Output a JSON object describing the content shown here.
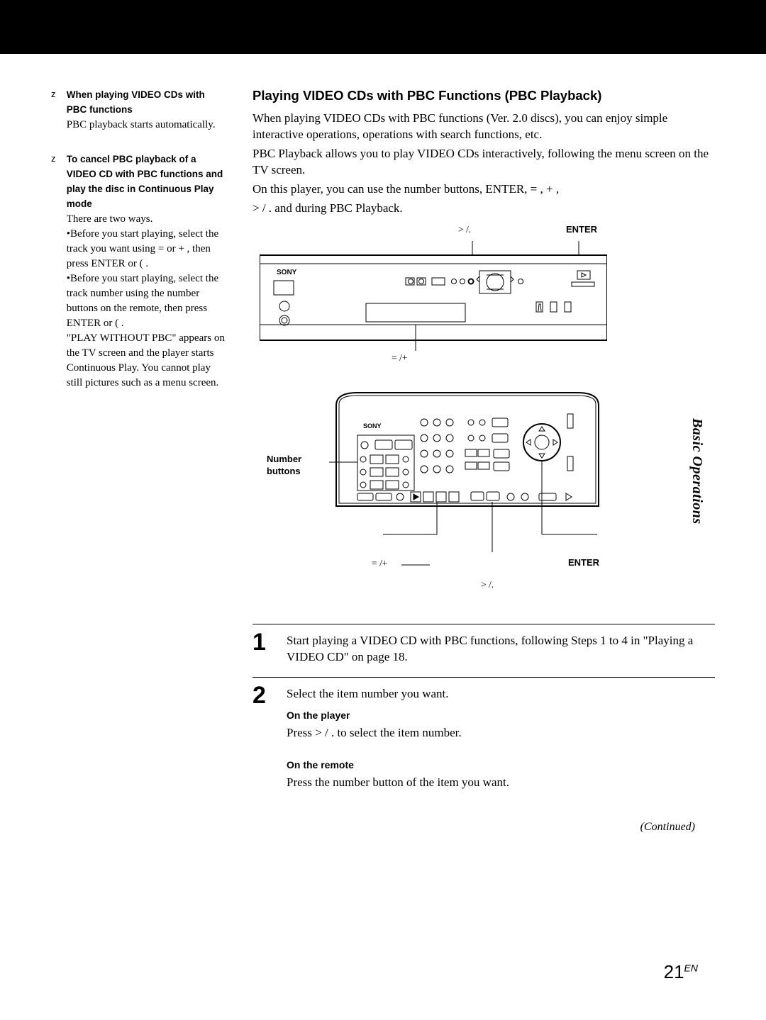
{
  "sidebar": {
    "notes": [
      {
        "marker": "z",
        "heading": "When playing VIDEO CDs with PBC functions",
        "text": "PBC playback starts automatically."
      },
      {
        "marker": "z",
        "heading": "To cancel PBC playback of a VIDEO CD with PBC functions and play the disc in Continuous Play mode",
        "text_lines": [
          "There are two ways.",
          "•Before you start playing, select the track you want using =    or +    , then press ENTER or (  .",
          "•Before you start playing, select the track number using the number buttons on the remote, then press ENTER or (  .",
          "\"PLAY WITHOUT PBC\" appears on the TV screen and the player starts Continuous Play.  You cannot play still pictures such as a menu screen."
        ]
      }
    ]
  },
  "main": {
    "heading": "Playing VIDEO CDs with PBC Functions (PBC Playback)",
    "paragraphs": [
      "When playing VIDEO CDs with PBC functions (Ver. 2.0 discs), you can enjoy simple interactive operations, operations with search functions, etc.",
      "PBC Playback allows you to play VIDEO CDs interactively, following the menu screen on the TV screen.",
      "On this player, you can use the number buttons, ENTER, =    , +    ,",
      "> / .  and      during PBC Playback."
    ],
    "diagram_labels": {
      "top_next_prev": "> /.",
      "enter": "ENTER",
      "sony": "SONY",
      "mid_prev_next": "=    /+",
      "number_buttons": "Number buttons",
      "bottom_prev_next": "=    /+",
      "bottom_next_prev": "> /.",
      "bottom_enter": "ENTER"
    },
    "steps": [
      {
        "num": "1",
        "text": "Start playing a VIDEO CD with PBC functions, following Steps 1 to 4 in \"Playing a VIDEO CD\" on page 18."
      },
      {
        "num": "2",
        "text": "Select the item number you want.",
        "subs": [
          {
            "label": "On the player",
            "text": "Press > / .  to select the item number."
          },
          {
            "label": "On the remote",
            "text": "Press the number button of the item you want."
          }
        ]
      }
    ],
    "continued": "(Continued)"
  },
  "page": {
    "side_tab": "Basic Operations",
    "number": "21",
    "suffix": "EN"
  }
}
